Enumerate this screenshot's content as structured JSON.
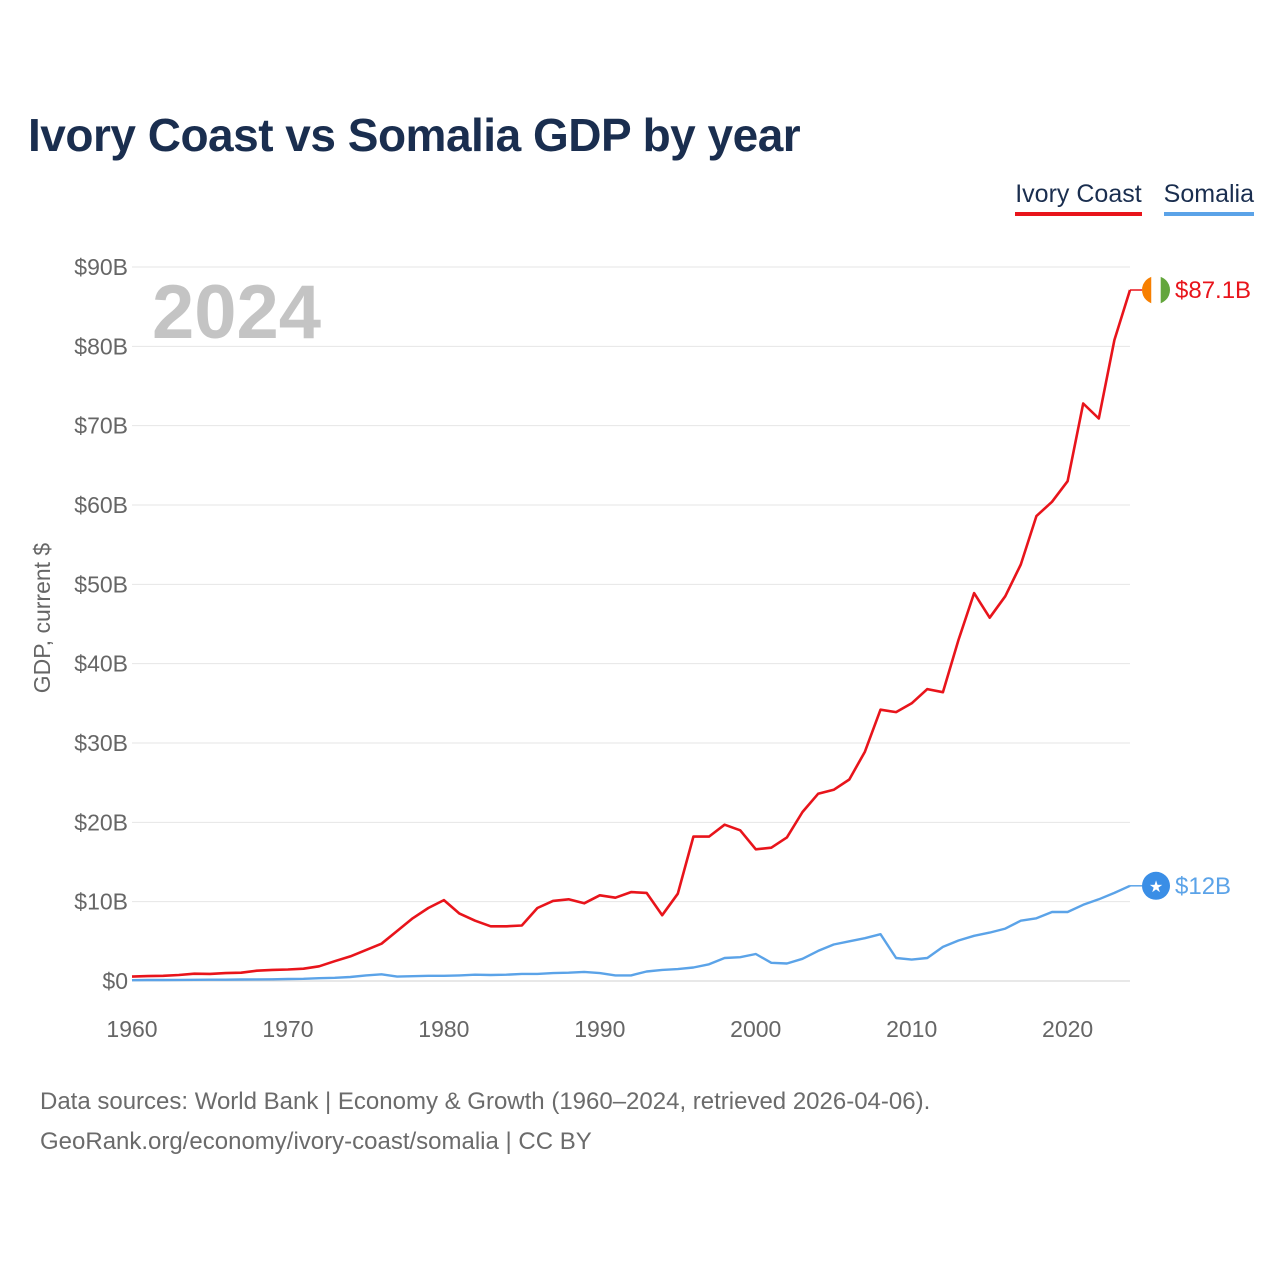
{
  "title": "Ivory Coast vs Somalia GDP by year",
  "legend": {
    "ivory_coast": "Ivory Coast",
    "somalia": "Somalia"
  },
  "colors": {
    "ivory_coast": "#e8141b",
    "somalia": "#5ba3e8",
    "grid": "#e6e6e6",
    "somalia_flag": "#3a8ee6"
  },
  "icons": {
    "ivory_coast_flag": "ivory-coast-flag-icon",
    "somalia_flag": "somalia-flag-icon"
  },
  "source": {
    "line1": "Data sources: World Bank | Economy & Growth (1960–2024, retrieved 2026-04-06).",
    "line2": "GeoRank.org/economy/ivory-coast/somalia | CC BY"
  },
  "chart_data": {
    "type": "line",
    "title": "Ivory Coast vs Somalia GDP by year",
    "xlabel": "",
    "ylabel": "GDP, current $",
    "xlim": [
      1960,
      2024
    ],
    "ylim": [
      0,
      90
    ],
    "y_unit": "billion USD",
    "x_ticks": [
      1960,
      1970,
      1980,
      1990,
      2000,
      2010,
      2020
    ],
    "x_tick_labels": [
      "1960",
      "1970",
      "1980",
      "1990",
      "2000",
      "2010",
      "2020"
    ],
    "y_ticks": [
      0,
      10,
      20,
      30,
      40,
      50,
      60,
      70,
      80,
      90
    ],
    "y_tick_labels": [
      "$0",
      "$10B",
      "$20B",
      "$30B",
      "$40B",
      "$50B",
      "$60B",
      "$70B",
      "$80B",
      "$90B"
    ],
    "year_label": "2024",
    "grid": true,
    "legend_position": "top-right",
    "x": [
      1960,
      1961,
      1962,
      1963,
      1964,
      1965,
      1966,
      1967,
      1968,
      1969,
      1970,
      1971,
      1972,
      1973,
      1974,
      1975,
      1976,
      1977,
      1978,
      1979,
      1980,
      1981,
      1982,
      1983,
      1984,
      1985,
      1986,
      1987,
      1988,
      1989,
      1990,
      1991,
      1992,
      1993,
      1994,
      1995,
      1996,
      1997,
      1998,
      1999,
      2000,
      2001,
      2002,
      2003,
      2004,
      2005,
      2006,
      2007,
      2008,
      2009,
      2010,
      2011,
      2012,
      2013,
      2014,
      2015,
      2016,
      2017,
      2018,
      2019,
      2020,
      2021,
      2022,
      2023,
      2024
    ],
    "series": [
      {
        "name": "Ivory Coast",
        "end_label": "$87.1B",
        "values": [
          0.55,
          0.62,
          0.65,
          0.75,
          0.92,
          0.9,
          1.0,
          1.05,
          1.3,
          1.4,
          1.45,
          1.55,
          1.85,
          2.5,
          3.1,
          3.9,
          4.7,
          6.3,
          7.9,
          9.2,
          10.2,
          8.5,
          7.6,
          6.9,
          6.9,
          7.0,
          9.2,
          10.1,
          10.3,
          9.8,
          10.8,
          10.5,
          11.2,
          11.1,
          8.3,
          11.0,
          18.2,
          18.2,
          19.7,
          19.0,
          16.6,
          16.8,
          18.1,
          21.3,
          23.6,
          24.1,
          25.4,
          28.9,
          34.2,
          33.9,
          35.0,
          36.8,
          36.4,
          43.0,
          48.9,
          45.8,
          48.5,
          52.5,
          58.6,
          60.4,
          63.0,
          72.8,
          70.9,
          80.8,
          87.1
        ]
      },
      {
        "name": "Somalia",
        "end_label": "$12B",
        "values": [
          0.1,
          0.12,
          0.12,
          0.14,
          0.15,
          0.16,
          0.17,
          0.19,
          0.2,
          0.22,
          0.25,
          0.28,
          0.35,
          0.4,
          0.5,
          0.7,
          0.85,
          0.55,
          0.6,
          0.65,
          0.65,
          0.7,
          0.8,
          0.75,
          0.8,
          0.9,
          0.9,
          1.0,
          1.05,
          1.15,
          1.0,
          0.7,
          0.7,
          1.2,
          1.4,
          1.5,
          1.7,
          2.1,
          2.9,
          3.0,
          3.4,
          2.3,
          2.2,
          2.8,
          3.8,
          4.6,
          5.0,
          5.4,
          5.9,
          2.9,
          2.7,
          2.9,
          4.3,
          5.1,
          5.7,
          6.1,
          6.6,
          7.6,
          7.9,
          8.7,
          8.7,
          9.6,
          10.3,
          11.1,
          12.0
        ]
      }
    ]
  }
}
